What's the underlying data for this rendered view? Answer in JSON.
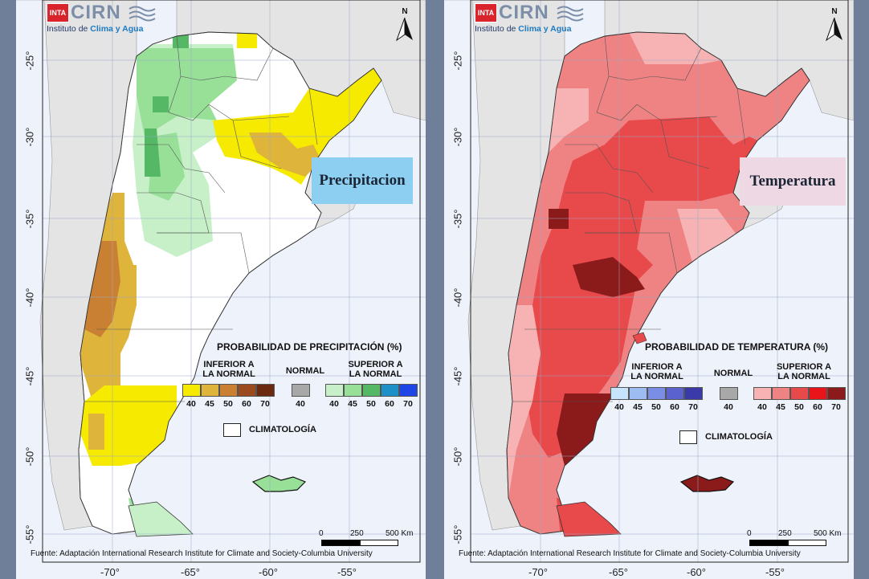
{
  "logo": {
    "brand": "INTA",
    "name": "CIRN",
    "subtitle_prefix": "Instituto de ",
    "subtitle_highlight": "Clima y Agua"
  },
  "north_label": "N",
  "axes": {
    "lat_labels": [
      "-25°",
      "-30°",
      "-35°",
      "-40°",
      "-45°",
      "-50°",
      "-55°"
    ],
    "lon_labels": [
      "-70°",
      "-65°",
      "-60°",
      "-55°"
    ]
  },
  "source": "Fuente: Adaptación International Research Institute for Climate and Society-Columbia University",
  "scale": {
    "labels": [
      "0",
      "250",
      "500 Km"
    ]
  },
  "climatology_label": "CLIMATOLOGÍA",
  "colors": {
    "ocean": "#eef2fb",
    "neighbors": "#e4e4e4",
    "precip_below": [
      "#f5ea00",
      "#dfb43a",
      "#c98032",
      "#9b4a20",
      "#6b2a10"
    ],
    "precip_above": [
      "#c8f0c8",
      "#98e098",
      "#55b865",
      "#1e90c8",
      "#1e46e6"
    ],
    "temp_below": [
      "#c6e4fb",
      "#9cbcf2",
      "#7a8ee6",
      "#5a62cf",
      "#3a3aa8"
    ],
    "temp_above": [
      "#f7b3b3",
      "#ef8383",
      "#e8494a",
      "#e8141a",
      "#8b1b1b"
    ],
    "normal": "#a8a8a8"
  },
  "left": {
    "tag": "Precipitacion",
    "legend": {
      "title": "PROBABILIDAD DE PRECIPITACIÓN (%)",
      "below_label": "INFERIOR A\nLA NORMAL",
      "normal_label": "NORMAL",
      "above_label": "SUPERIOR A\nLA NORMAL",
      "below_ticks": [
        "40",
        "45",
        "50",
        "60",
        "70"
      ],
      "normal_tick": "40",
      "above_ticks": [
        "40",
        "45",
        "50",
        "60",
        "70"
      ]
    }
  },
  "right": {
    "tag": "Temperatura",
    "legend": {
      "title": "PROBABILIDAD DE TEMPERATURA (%)",
      "below_label": "INFERIOR A\nLA NORMAL",
      "normal_label": "NORMAL",
      "above_label": "SUPERIOR A\nLA NORMAL",
      "below_ticks": [
        "40",
        "45",
        "50",
        "60",
        "70"
      ],
      "normal_tick": "40",
      "above_ticks": [
        "40",
        "45",
        "50",
        "60",
        "70"
      ]
    }
  }
}
